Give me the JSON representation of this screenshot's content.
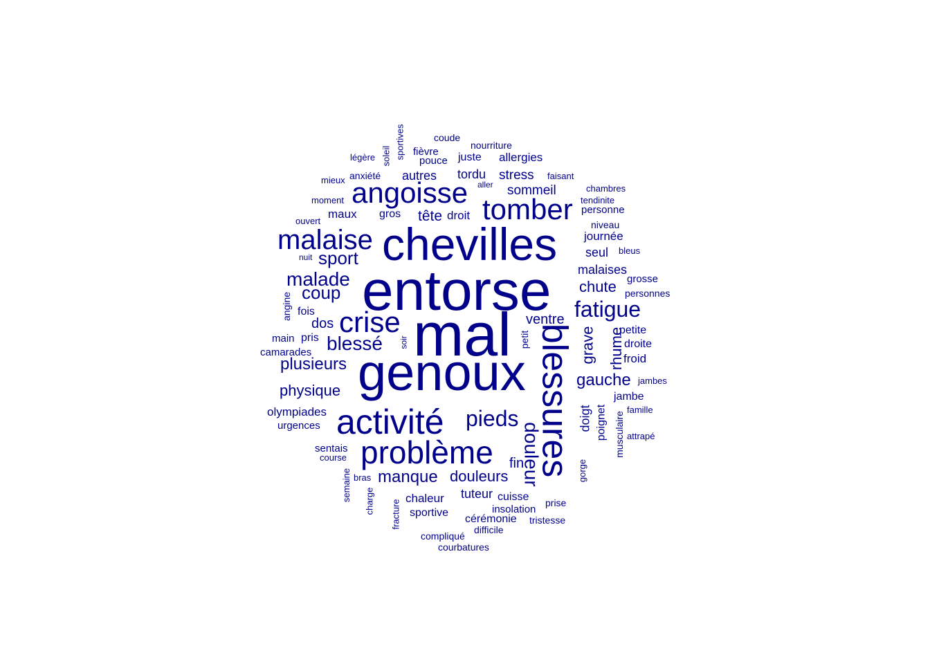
{
  "word_cloud": {
    "color": "#00008B",
    "words": [
      {
        "text": "entorse"
      },
      {
        "text": "mal"
      },
      {
        "text": "genoux"
      },
      {
        "text": "chevilles"
      },
      {
        "text": "blessures"
      },
      {
        "text": "activité"
      },
      {
        "text": "problème"
      },
      {
        "text": "angoisse"
      },
      {
        "text": "tomber"
      },
      {
        "text": "malaise"
      },
      {
        "text": "crise"
      },
      {
        "text": "fatigue"
      },
      {
        "text": "pieds"
      },
      {
        "text": "malade"
      },
      {
        "text": "douleur"
      },
      {
        "text": "blessé"
      },
      {
        "text": "coup"
      },
      {
        "text": "sport"
      },
      {
        "text": "plusieurs"
      },
      {
        "text": "gauche"
      },
      {
        "text": "manque"
      },
      {
        "text": "douleurs"
      },
      {
        "text": "physique"
      },
      {
        "text": "chute"
      },
      {
        "text": "ventre"
      },
      {
        "text": "rhume"
      },
      {
        "text": "grave"
      },
      {
        "text": "dos"
      },
      {
        "text": "fin"
      },
      {
        "text": "olympiades"
      },
      {
        "text": "tête"
      },
      {
        "text": "sommeil"
      },
      {
        "text": "stress"
      },
      {
        "text": "autres"
      },
      {
        "text": "tordu"
      },
      {
        "text": "allergies"
      },
      {
        "text": "malaises"
      },
      {
        "text": "journée"
      },
      {
        "text": "seul"
      },
      {
        "text": "maux"
      },
      {
        "text": "gros"
      },
      {
        "text": "droit"
      },
      {
        "text": "tuteur"
      },
      {
        "text": "chaleur"
      },
      {
        "text": "sportive"
      },
      {
        "text": "cérémonie"
      },
      {
        "text": "cuisse"
      },
      {
        "text": "insolation"
      },
      {
        "text": "doigt"
      },
      {
        "text": "poignet"
      },
      {
        "text": "jambe"
      },
      {
        "text": "petite"
      },
      {
        "text": "droite"
      },
      {
        "text": "froid"
      },
      {
        "text": "pouce"
      },
      {
        "text": "juste"
      },
      {
        "text": "fièvre"
      },
      {
        "text": "anxiété"
      },
      {
        "text": "pris"
      },
      {
        "text": "main"
      },
      {
        "text": "fois"
      },
      {
        "text": "angine"
      },
      {
        "text": "camarades"
      },
      {
        "text": "urgences"
      },
      {
        "text": "sentais"
      },
      {
        "text": "musculaire"
      },
      {
        "text": "grosse"
      },
      {
        "text": "personne"
      },
      {
        "text": "niveau"
      },
      {
        "text": "tendinite"
      },
      {
        "text": "chambres"
      },
      {
        "text": "faisant"
      },
      {
        "text": "nourriture"
      },
      {
        "text": "coude"
      },
      {
        "text": "sportives"
      },
      {
        "text": "soleil"
      },
      {
        "text": "légère"
      },
      {
        "text": "mieux"
      },
      {
        "text": "moment"
      },
      {
        "text": "ouvert"
      },
      {
        "text": "nuit"
      },
      {
        "text": "aller"
      },
      {
        "text": "bleus"
      },
      {
        "text": "personnes"
      },
      {
        "text": "jambes"
      },
      {
        "text": "famille"
      },
      {
        "text": "attrapé"
      },
      {
        "text": "gorge"
      },
      {
        "text": "petit"
      },
      {
        "text": "soir"
      },
      {
        "text": "course"
      },
      {
        "text": "semaine"
      },
      {
        "text": "bras"
      },
      {
        "text": "charge"
      },
      {
        "text": "fracture"
      },
      {
        "text": "compliqué"
      },
      {
        "text": "difficile"
      },
      {
        "text": "courbatures"
      },
      {
        "text": "tristesse"
      },
      {
        "text": "prise"
      }
    ]
  }
}
